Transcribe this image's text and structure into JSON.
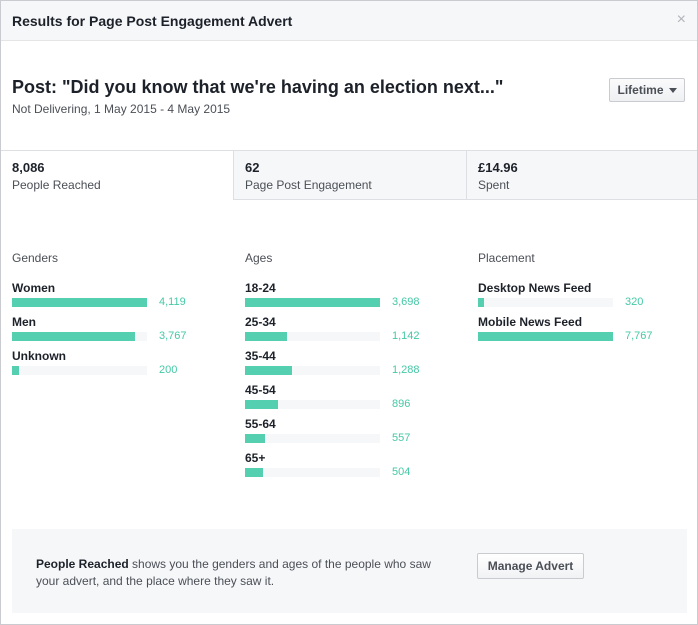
{
  "dialog": {
    "title": "Results for Page Post Engagement Advert",
    "close_glyph": "×"
  },
  "post": {
    "title": "Post: \"Did you know that we're having an election next...\"",
    "subtitle": "Not Delivering, 1 May 2015 - 4 May 2015"
  },
  "range_select": {
    "selected": "Lifetime"
  },
  "stats": [
    {
      "value": "8,086",
      "label": "People Reached"
    },
    {
      "value": "62",
      "label": "Page Post Engagement"
    },
    {
      "value": "£14.96",
      "label": "Spent"
    }
  ],
  "genders": {
    "heading": "Genders",
    "max": 4119,
    "rows": [
      {
        "label": "Women",
        "value": 4119,
        "display": "4,119"
      },
      {
        "label": "Men",
        "value": 3767,
        "display": "3,767"
      },
      {
        "label": "Unknown",
        "value": 200,
        "display": "200"
      }
    ]
  },
  "ages": {
    "heading": "Ages",
    "max": 3698,
    "rows": [
      {
        "label": "18-24",
        "value": 3698,
        "display": "3,698"
      },
      {
        "label": "25-34",
        "value": 1142,
        "display": "1,142"
      },
      {
        "label": "35-44",
        "value": 1288,
        "display": "1,288"
      },
      {
        "label": "45-54",
        "value": 896,
        "display": "896"
      },
      {
        "label": "55-64",
        "value": 557,
        "display": "557"
      },
      {
        "label": "65+",
        "value": 504,
        "display": "504"
      }
    ]
  },
  "placement": {
    "heading": "Placement",
    "max": 7767,
    "rows": [
      {
        "label": "Desktop News Feed",
        "value": 320,
        "display": "320"
      },
      {
        "label": "Mobile News Feed",
        "value": 7767,
        "display": "7,767"
      }
    ]
  },
  "footer": {
    "bold": "People Reached",
    "text": " shows you the genders and ages of the people who saw your advert, and the place where they saw it.",
    "manage_label": "Manage Advert"
  },
  "colors": {
    "bar": "#54d0b0",
    "bar_value": "#45c9a5",
    "track": "#f6f7f9"
  }
}
